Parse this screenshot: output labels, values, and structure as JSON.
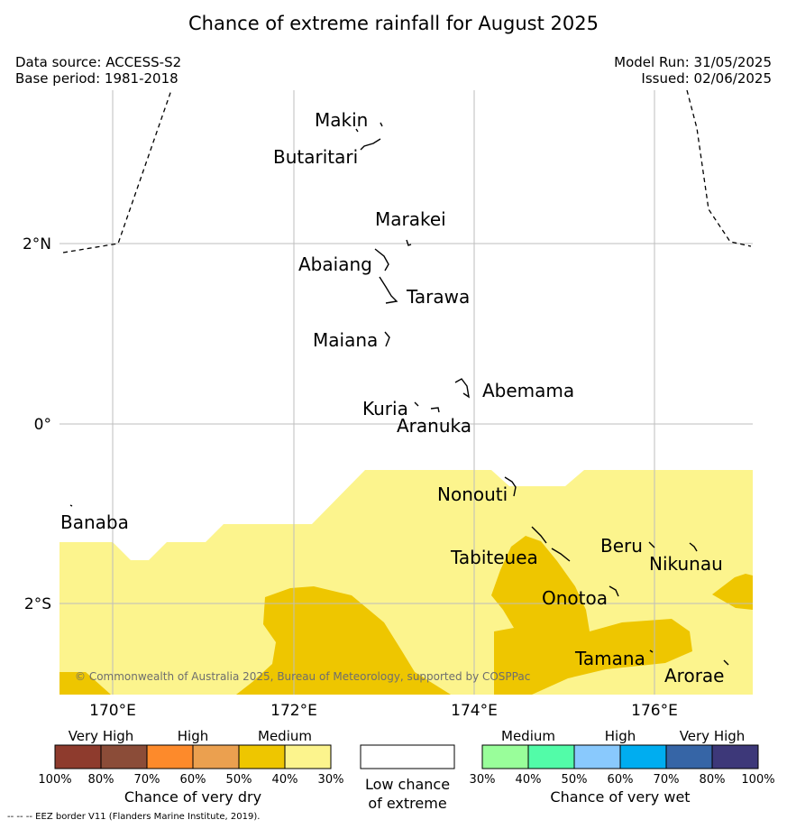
{
  "title": "Chance of extreme rainfall for August 2025",
  "meta": {
    "data_source": "Data source: ACCESS-S2",
    "base_period": "Base period: 1981-2018",
    "model_run": "Model Run: 31/05/2025",
    "issued": "Issued: 02/06/2025"
  },
  "map": {
    "x_ticks": [
      "170°E",
      "172°E",
      "174°E",
      "176°E"
    ],
    "y_ticks": [
      "2°N",
      "0°",
      "2°S"
    ],
    "islands": [
      "Makin",
      "Butaritari",
      "Marakei",
      "Abaiang",
      "Tarawa",
      "Maiana",
      "Abemama",
      "Kuria",
      "Aranuka",
      "Nonouti",
      "Banaba",
      "Tabiteuea",
      "Beru",
      "Nikunau",
      "Onotoa",
      "Tamana",
      "Arorae"
    ],
    "copyright": "© Commonwealth of Australia 2025, Bureau of Meteorology, supported by COSPPac"
  },
  "legend": {
    "dry": {
      "groups": [
        "Very High",
        "High",
        "Medium"
      ],
      "ticks": [
        "100%",
        "80%",
        "70%",
        "60%",
        "50%",
        "40%",
        "30%"
      ],
      "colors": [
        "#8e3b2d",
        "#8b4c38",
        "#fd8a2b",
        "#eba04f",
        "#eec600",
        "#fcf48d"
      ],
      "title": "Chance of very dry"
    },
    "neutral": {
      "title_line1": "Low chance",
      "title_line2": "of extreme",
      "color": "#ffffff"
    },
    "wet": {
      "groups": [
        "Medium",
        "High",
        "Very High"
      ],
      "ticks": [
        "30%",
        "40%",
        "50%",
        "60%",
        "70%",
        "80%",
        "100%"
      ],
      "colors": [
        "#99fe9a",
        "#52fca8",
        "#89c9fd",
        "#00adf0",
        "#3665a6",
        "#3d3879"
      ],
      "title": "Chance of very wet"
    }
  },
  "footnote": "--  --  -- EEZ border V11 (Flanders Marine Institute, 2019)."
}
